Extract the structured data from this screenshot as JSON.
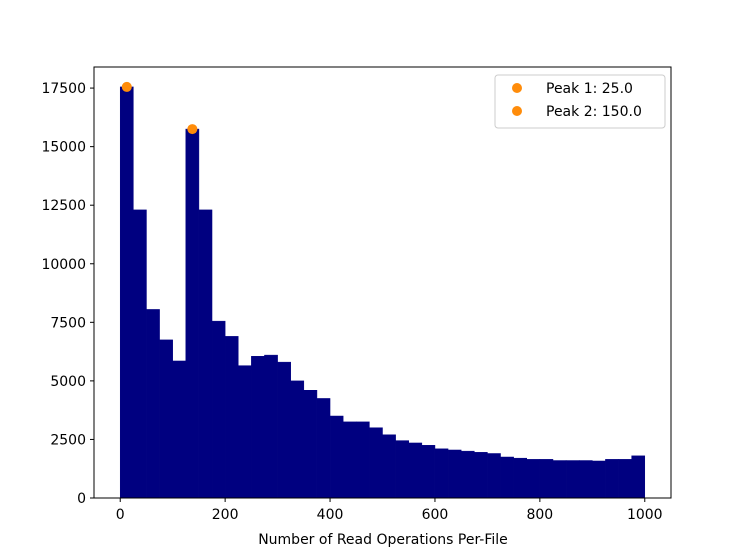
{
  "chart_data": {
    "type": "bar",
    "title": "",
    "xlabel": "Number of Read Operations Per-File",
    "ylabel": "",
    "xlim": [
      -50,
      1050
    ],
    "ylim": [
      0,
      18400
    ],
    "bin_width": 25,
    "x_ticks": [
      0,
      200,
      400,
      600,
      800,
      1000
    ],
    "x_tick_labels": [
      "0",
      "200",
      "400",
      "600",
      "800",
      "1000"
    ],
    "y_ticks": [
      0,
      2500,
      5000,
      7500,
      10000,
      12500,
      15000,
      17500
    ],
    "y_tick_labels": [
      "0",
      "2500",
      "5000",
      "7500",
      "10000",
      "12500",
      "15000",
      "17500"
    ],
    "bin_starts": [
      0,
      25,
      50,
      75,
      100,
      125,
      150,
      175,
      200,
      225,
      250,
      275,
      300,
      325,
      350,
      375,
      400,
      425,
      450,
      475,
      500,
      525,
      550,
      575,
      600,
      625,
      650,
      675,
      700,
      725,
      750,
      775,
      800,
      825,
      850,
      875,
      900,
      925,
      950,
      975
    ],
    "values": [
      17550,
      12300,
      8050,
      6750,
      5850,
      15750,
      12300,
      7550,
      6900,
      5650,
      6050,
      6100,
      5800,
      5000,
      4600,
      4250,
      3500,
      3250,
      3250,
      3000,
      2700,
      2450,
      2350,
      2250,
      2100,
      2050,
      2000,
      1950,
      1900,
      1750,
      1700,
      1650,
      1650,
      1600,
      1600,
      1600,
      1580,
      1650,
      1650,
      1800
    ],
    "bar_color": "#000080",
    "peaks": [
      {
        "name": "Peak 1: 25.0",
        "x": 12.5,
        "y": 17550
      },
      {
        "name": "Peak 2: 150.0",
        "x": 137.5,
        "y": 15750
      }
    ],
    "peak_color": "#ff8c0a",
    "legend_position": "upper right",
    "grid": false
  }
}
